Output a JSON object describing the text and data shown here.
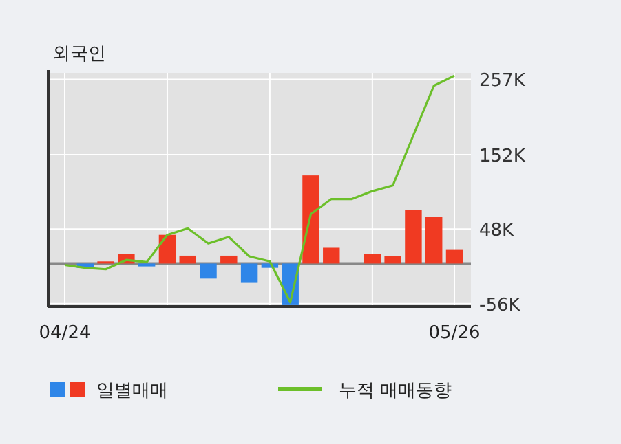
{
  "chart_data": {
    "type": "bar",
    "title": "외국인",
    "categories": [
      "04/24",
      null,
      null,
      null,
      null,
      null,
      null,
      null,
      null,
      null,
      null,
      null,
      null,
      null,
      null,
      null,
      null,
      null,
      null,
      "05/26"
    ],
    "series": [
      {
        "name": "일별매매",
        "values": [
          0,
          -6,
          3,
          13,
          -4,
          40,
          11,
          -21,
          11,
          -27,
          -6,
          -58,
          123,
          22,
          0,
          13,
          10,
          75,
          65,
          19
        ],
        "colors": [
          "#f03a22",
          "#2f86e8",
          "#f03a22",
          "#f03a22",
          "#2f86e8",
          "#f03a22",
          "#f03a22",
          "#2f86e8",
          "#f03a22",
          "#2f86e8",
          "#2f86e8",
          "#2f86e8",
          "#f03a22",
          "#f03a22",
          "#f03a22",
          "#f03a22",
          "#f03a22",
          "#f03a22",
          "#f03a22",
          "#f03a22"
        ]
      },
      {
        "name": "누적 매매동향",
        "type": "line",
        "color": "#6cbf2a",
        "values": [
          -2,
          -6,
          -8,
          5,
          2,
          40,
          49,
          28,
          37,
          10,
          3,
          -54,
          69,
          90,
          90,
          101,
          109,
          179,
          248,
          262
        ]
      }
    ],
    "ylim": [
      -60,
      266
    ],
    "yticks": [
      {
        "value": -56,
        "label": "-56K"
      },
      {
        "value": 48,
        "label": "48K"
      },
      {
        "value": 152,
        "label": "152K"
      },
      {
        "value": 257,
        "label": "257K"
      }
    ],
    "grid": true,
    "legend": "bottom"
  }
}
